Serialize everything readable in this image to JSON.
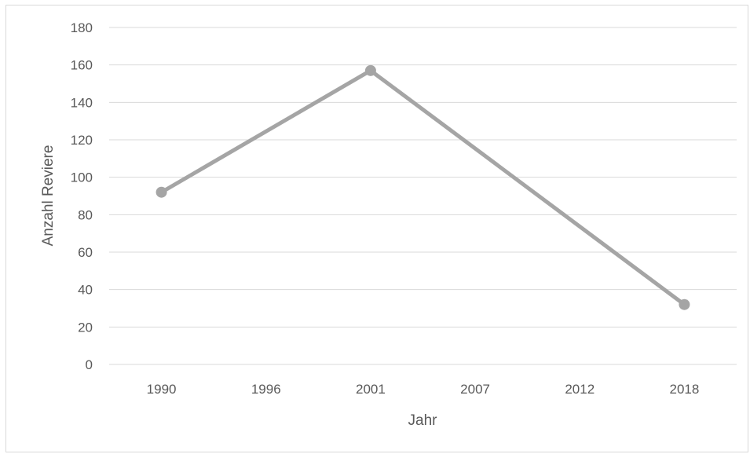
{
  "chart_data": {
    "type": "line",
    "title": "",
    "xlabel": "Jahr",
    "ylabel": "Anzahl Reviere",
    "x": [
      "1990",
      "1996",
      "2001",
      "2007",
      "2012",
      "2018"
    ],
    "series": [
      {
        "values": [
          92,
          null,
          157,
          null,
          null,
          32
        ],
        "color": "#a5a5a5"
      }
    ],
    "ylim": [
      0,
      180
    ],
    "yticks": [
      0,
      20,
      40,
      60,
      80,
      100,
      120,
      140,
      160,
      180
    ],
    "grid": true,
    "gridColor": "#d9d9d9",
    "legend": "none"
  }
}
